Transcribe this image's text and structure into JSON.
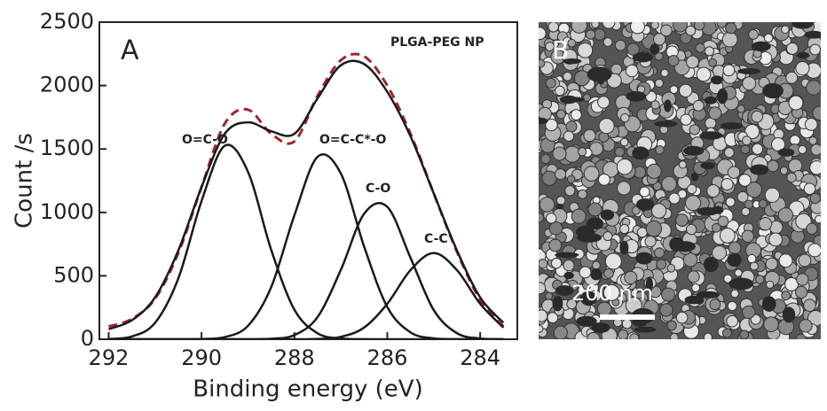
{
  "chart_data": {
    "type": "line",
    "xlabel": "Binding energy (eV)",
    "ylabel": "Count /s",
    "panel_labels": [
      "A",
      "B"
    ],
    "annotations": [
      "PLGA-PEG NP",
      "O=C-O",
      "O=C-C*-O",
      "C-O",
      "C-C"
    ],
    "scale_bar_label": "200 nm",
    "x": [
      292,
      291.5,
      291,
      290.5,
      290,
      289.5,
      289,
      288.5,
      288,
      287.5,
      287,
      286.5,
      286,
      285.5,
      285,
      284.5,
      284,
      283.5
    ],
    "series": [
      {
        "color": "#a3242b",
        "dashed": true,
        "values": [
          100,
          160,
          320,
          680,
          1200,
          1700,
          1810,
          1620,
          1560,
          1920,
          2200,
          2230,
          2000,
          1620,
          1150,
          690,
          310,
          100
        ]
      },
      {
        "color": "#1a1a1a",
        "values": [
          80,
          150,
          330,
          700,
          1200,
          1620,
          1710,
          1640,
          1620,
          1900,
          2160,
          2170,
          1950,
          1600,
          1150,
          700,
          330,
          130
        ]
      },
      {
        "color": "#1a1a1a",
        "values": [
          2,
          22,
          130,
          480,
          1090,
          1525,
          1320,
          705,
          233,
          47,
          6,
          1,
          0,
          0,
          0,
          0,
          0,
          0
        ]
      },
      {
        "color": "#1a1a1a",
        "values": [
          0,
          0,
          0,
          0,
          2,
          17,
          106,
          411,
          978,
          1439,
          1306,
          732,
          254,
          54,
          7,
          1,
          0,
          0
        ]
      },
      {
        "color": "#1a1a1a",
        "values": [
          0,
          0,
          0,
          0,
          0,
          0,
          0,
          4,
          33,
          176,
          547,
          989,
          1044,
          642,
          230,
          48,
          6,
          0
        ]
      },
      {
        "color": "#1a1a1a",
        "values": [
          0,
          0,
          0,
          0,
          0,
          0,
          0,
          0,
          0,
          3,
          19,
          92,
          280,
          545,
          680,
          545,
          280,
          92
        ]
      }
    ],
    "xlim": [
      292.2,
      283.2
    ],
    "ylim": [
      0,
      2500
    ],
    "xticks": [
      292,
      290,
      288,
      286,
      284
    ],
    "yticks": [
      0,
      500,
      1000,
      1500,
      2000,
      2500
    ]
  }
}
